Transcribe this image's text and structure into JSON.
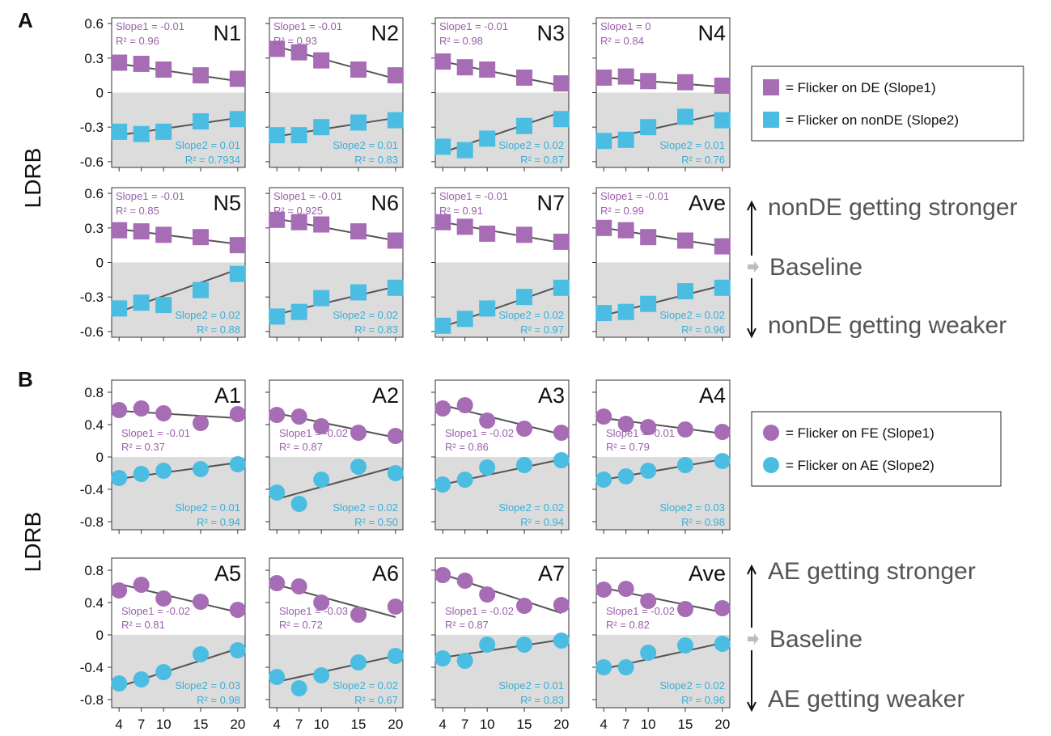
{
  "panel_labels": {
    "a": "A",
    "b": "B"
  },
  "y_axis_label": "LDRB",
  "colors": {
    "purple": "#a66cb4",
    "cyan": "#4bbde3",
    "fit_line": "#555555",
    "negative_bg": "#dcdcdc",
    "frame": "#333333",
    "tag_purple": "#9a5faa",
    "tag_cyan": "#3aaed6"
  },
  "legends": {
    "a": [
      "= Flicker on DE (Slope1)",
      "= Flicker on nonDE (Slope2)"
    ],
    "b": [
      "= Flicker on FE (Slope1)",
      "= Flicker on AE (Slope2)"
    ]
  },
  "annotations": {
    "a": {
      "stronger": "nonDE getting stronger",
      "baseline": "Baseline",
      "weaker": "nonDE getting weaker"
    },
    "b": {
      "stronger": "AE getting stronger",
      "baseline": "Baseline",
      "weaker": "AE getting weaker"
    }
  },
  "chart_data": [
    {
      "type": "scatter",
      "panel": "A",
      "title": "N1",
      "x": [
        4,
        7,
        10,
        15,
        20
      ],
      "xlim": [
        3,
        21
      ],
      "ylim": [
        -0.65,
        0.65
      ],
      "yticks": [
        "0.6",
        "0.3",
        "0",
        "-0.3",
        "-0.6"
      ],
      "series": [
        {
          "name": "Flicker on DE (Slope1)",
          "values": [
            0.26,
            0.25,
            0.2,
            0.15,
            0.12
          ],
          "fit": [
            0.25,
            0.1
          ],
          "slope_text": "Slope1 = -0.01",
          "r2_text": "R² = 0.96"
        },
        {
          "name": "Flicker on nonDE (Slope2)",
          "values": [
            -0.34,
            -0.36,
            -0.34,
            -0.25,
            -0.23
          ],
          "fit": [
            -0.37,
            -0.22
          ],
          "slope_text": "Slope2 = 0.01",
          "r2_text": "R² = 0.7934"
        }
      ]
    },
    {
      "type": "scatter",
      "panel": "A",
      "title": "N2",
      "x": [
        4,
        7,
        10,
        15,
        20
      ],
      "xlim": [
        3,
        21
      ],
      "ylim": [
        -0.65,
        0.65
      ],
      "yticks": [
        "0.6",
        "0.3",
        "0",
        "-0.3",
        "-0.6"
      ],
      "series": [
        {
          "name": "Flicker on DE (Slope1)",
          "values": [
            0.38,
            0.35,
            0.28,
            0.2,
            0.15
          ],
          "fit": [
            0.4,
            0.12
          ],
          "slope_text": "Slope1 = -0.01",
          "r2_text": "R² = 0.93"
        },
        {
          "name": "Flicker on nonDE (Slope2)",
          "values": [
            -0.37,
            -0.37,
            -0.3,
            -0.26,
            -0.24
          ],
          "fit": [
            -0.38,
            -0.22
          ],
          "slope_text": "Slope2 = 0.01",
          "r2_text": "R² = 0.83"
        }
      ]
    },
    {
      "type": "scatter",
      "panel": "A",
      "title": "N3",
      "x": [
        4,
        7,
        10,
        15,
        20
      ],
      "xlim": [
        3,
        21
      ],
      "ylim": [
        -0.65,
        0.65
      ],
      "yticks": [
        "0.6",
        "0.3",
        "0",
        "-0.3",
        "-0.6"
      ],
      "series": [
        {
          "name": "Flicker on DE (Slope1)",
          "values": [
            0.27,
            0.22,
            0.2,
            0.13,
            0.08
          ],
          "fit": [
            0.27,
            0.06
          ],
          "slope_text": "Slope1 = -0.01",
          "r2_text": "R² = 0.98"
        },
        {
          "name": "Flicker on nonDE (Slope2)",
          "values": [
            -0.47,
            -0.5,
            -0.4,
            -0.29,
            -0.23
          ],
          "fit": [
            -0.52,
            -0.17
          ],
          "slope_text": "Slope2 = 0.02",
          "r2_text": "R² = 0.87"
        }
      ]
    },
    {
      "type": "scatter",
      "panel": "A",
      "title": "N4",
      "x": [
        4,
        7,
        10,
        15,
        20
      ],
      "xlim": [
        3,
        21
      ],
      "ylim": [
        -0.65,
        0.65
      ],
      "yticks": [
        "0.6",
        "0.3",
        "0",
        "-0.3",
        "-0.6"
      ],
      "series": [
        {
          "name": "Flicker on DE (Slope1)",
          "values": [
            0.13,
            0.14,
            0.1,
            0.09,
            0.06
          ],
          "fit": [
            0.13,
            0.05
          ],
          "slope_text": "Slope1 = 0",
          "r2_text": "R² = 0.84"
        },
        {
          "name": "Flicker on nonDE (Slope2)",
          "values": [
            -0.42,
            -0.41,
            -0.3,
            -0.21,
            -0.24
          ],
          "fit": [
            -0.41,
            -0.18
          ],
          "slope_text": "Slope2 = 0.01",
          "r2_text": "R² = 0.76"
        }
      ]
    },
    {
      "type": "scatter",
      "panel": "A",
      "title": "N5",
      "x": [
        4,
        7,
        10,
        15,
        20
      ],
      "xlim": [
        3,
        21
      ],
      "ylim": [
        -0.65,
        0.65
      ],
      "yticks": [
        "0.6",
        "0.3",
        "0",
        "-0.3",
        "-0.6"
      ],
      "series": [
        {
          "name": "Flicker on DE (Slope1)",
          "values": [
            0.28,
            0.27,
            0.24,
            0.22,
            0.15
          ],
          "fit": [
            0.29,
            0.16
          ],
          "slope_text": "Slope1 = -0.01",
          "r2_text": "R² = 0.85"
        },
        {
          "name": "Flicker on nonDE (Slope2)",
          "values": [
            -0.4,
            -0.35,
            -0.37,
            -0.24,
            -0.1
          ],
          "fit": [
            -0.43,
            -0.06
          ],
          "slope_text": "Slope2 = 0.02",
          "r2_text": "R² = 0.88"
        }
      ]
    },
    {
      "type": "scatter",
      "panel": "A",
      "title": "N6",
      "x": [
        4,
        7,
        10,
        15,
        20
      ],
      "xlim": [
        3,
        21
      ],
      "ylim": [
        -0.65,
        0.65
      ],
      "yticks": [
        "0.6",
        "0.3",
        "0",
        "-0.3",
        "-0.6"
      ],
      "series": [
        {
          "name": "Flicker on DE (Slope1)",
          "values": [
            0.37,
            0.35,
            0.33,
            0.27,
            0.19
          ],
          "fit": [
            0.38,
            0.19
          ],
          "slope_text": "Slope1 = -0.01",
          "r2_text": "R² = 0.925"
        },
        {
          "name": "Flicker on nonDE (Slope2)",
          "values": [
            -0.47,
            -0.43,
            -0.31,
            -0.26,
            -0.22
          ],
          "fit": [
            -0.45,
            -0.21
          ],
          "slope_text": "Slope2 = 0.02",
          "r2_text": "R² = 0.83"
        }
      ]
    },
    {
      "type": "scatter",
      "panel": "A",
      "title": "N7",
      "x": [
        4,
        7,
        10,
        15,
        20
      ],
      "xlim": [
        3,
        21
      ],
      "ylim": [
        -0.65,
        0.65
      ],
      "yticks": [
        "0.6",
        "0.3",
        "0",
        "-0.3",
        "-0.6"
      ],
      "series": [
        {
          "name": "Flicker on DE (Slope1)",
          "values": [
            0.35,
            0.31,
            0.25,
            0.24,
            0.18
          ],
          "fit": [
            0.35,
            0.17
          ],
          "slope_text": "Slope1 = -0.01",
          "r2_text": "R² = 0.91"
        },
        {
          "name": "Flicker on nonDE (Slope2)",
          "values": [
            -0.55,
            -0.49,
            -0.4,
            -0.3,
            -0.22
          ],
          "fit": [
            -0.56,
            -0.2
          ],
          "slope_text": "Slope2 = 0.02",
          "r2_text": "R² = 0.97"
        }
      ]
    },
    {
      "type": "scatter",
      "panel": "A",
      "title": "Ave",
      "x": [
        4,
        7,
        10,
        15,
        20
      ],
      "xlim": [
        3,
        21
      ],
      "ylim": [
        -0.65,
        0.65
      ],
      "yticks": [
        "0.6",
        "0.3",
        "0",
        "-0.3",
        "-0.6"
      ],
      "series": [
        {
          "name": "Flicker on DE (Slope1)",
          "values": [
            0.3,
            0.28,
            0.22,
            0.19,
            0.14
          ],
          "fit": [
            0.3,
            0.14
          ],
          "slope_text": "Slope1 = -0.01",
          "r2_text": "R² = 0.99"
        },
        {
          "name": "Flicker on nonDE (Slope2)",
          "values": [
            -0.44,
            -0.43,
            -0.36,
            -0.25,
            -0.22
          ],
          "fit": [
            -0.46,
            -0.2
          ],
          "slope_text": "Slope2 = 0.02",
          "r2_text": "R² = 0.96"
        }
      ]
    },
    {
      "type": "scatter",
      "panel": "B",
      "title": "A1",
      "x": [
        4,
        7,
        10,
        15,
        20
      ],
      "xlim": [
        3,
        21
      ],
      "ylim": [
        -0.9,
        0.95
      ],
      "yticks": [
        "0.8",
        "0.4",
        "0",
        "-0.4",
        "-0.8"
      ],
      "series": [
        {
          "name": "Flicker on FE (Slope1)",
          "values": [
            0.58,
            0.6,
            0.54,
            0.42,
            0.53
          ],
          "fit": [
            0.57,
            0.48
          ],
          "slope_text": "Slope1 = -0.01",
          "r2_text": "R² = 0.37"
        },
        {
          "name": "Flicker on AE (Slope2)",
          "values": [
            -0.26,
            -0.21,
            -0.17,
            -0.15,
            -0.09
          ],
          "fit": [
            -0.27,
            -0.07
          ],
          "slope_text": "Slope2 = 0.01",
          "r2_text": "R² = 0.94"
        }
      ]
    },
    {
      "type": "scatter",
      "panel": "B",
      "title": "A2",
      "x": [
        4,
        7,
        10,
        15,
        20
      ],
      "xlim": [
        3,
        21
      ],
      "ylim": [
        -0.9,
        0.95
      ],
      "yticks": [
        "0.8",
        "0.4",
        "0",
        "-0.4",
        "-0.8"
      ],
      "series": [
        {
          "name": "Flicker on FE (Slope1)",
          "values": [
            0.52,
            0.5,
            0.38,
            0.3,
            0.26
          ],
          "fit": [
            0.54,
            0.24
          ],
          "slope_text": "Slope1 = -0.02",
          "r2_text": "R² = 0.87"
        },
        {
          "name": "Flicker on AE (Slope2)",
          "values": [
            -0.44,
            -0.58,
            -0.28,
            -0.12,
            -0.2
          ],
          "fit": [
            -0.52,
            -0.12
          ],
          "slope_text": "Slope2 = 0.02",
          "r2_text": "R² = 0.50"
        }
      ]
    },
    {
      "type": "scatter",
      "panel": "B",
      "title": "A3",
      "x": [
        4,
        7,
        10,
        15,
        20
      ],
      "xlim": [
        3,
        21
      ],
      "ylim": [
        -0.9,
        0.95
      ],
      "yticks": [
        "0.8",
        "0.4",
        "0",
        "-0.4",
        "-0.8"
      ],
      "series": [
        {
          "name": "Flicker on FE (Slope1)",
          "values": [
            0.6,
            0.64,
            0.45,
            0.35,
            0.3
          ],
          "fit": [
            0.64,
            0.28
          ],
          "slope_text": "Slope1 = -0.02",
          "r2_text": "R² = 0.86"
        },
        {
          "name": "Flicker on AE (Slope2)",
          "values": [
            -0.34,
            -0.28,
            -0.13,
            -0.1,
            -0.04
          ],
          "fit": [
            -0.34,
            -0.03
          ],
          "slope_text": "Slope2 = 0.02",
          "r2_text": "R² = 0.94"
        }
      ]
    },
    {
      "type": "scatter",
      "panel": "B",
      "title": "A4",
      "x": [
        4,
        7,
        10,
        15,
        20
      ],
      "xlim": [
        3,
        21
      ],
      "ylim": [
        -0.9,
        0.95
      ],
      "yticks": [
        "0.8",
        "0.4",
        "0",
        "-0.4",
        "-0.8"
      ],
      "series": [
        {
          "name": "Flicker on FE (Slope1)",
          "values": [
            0.5,
            0.41,
            0.37,
            0.34,
            0.31
          ],
          "fit": [
            0.48,
            0.29
          ],
          "slope_text": "Slope1 = -0.01",
          "r2_text": "R² = 0.79"
        },
        {
          "name": "Flicker on AE (Slope2)",
          "values": [
            -0.28,
            -0.24,
            -0.17,
            -0.1,
            -0.05
          ],
          "fit": [
            -0.28,
            -0.03
          ],
          "slope_text": "Slope2 = 0.03",
          "r2_text": "R² = 0.98"
        }
      ]
    },
    {
      "type": "scatter",
      "panel": "B",
      "title": "A5",
      "x": [
        4,
        7,
        10,
        15,
        20
      ],
      "xlim": [
        3,
        21
      ],
      "ylim": [
        -0.9,
        0.95
      ],
      "yticks": [
        "0.8",
        "0.4",
        "0",
        "-0.4",
        "-0.8"
      ],
      "series": [
        {
          "name": "Flicker on FE (Slope1)",
          "values": [
            0.55,
            0.62,
            0.45,
            0.41,
            0.31
          ],
          "fit": [
            0.63,
            0.28
          ],
          "slope_text": "Slope1 = -0.02",
          "r2_text": "R² = 0.81"
        },
        {
          "name": "Flicker on AE (Slope2)",
          "values": [
            -0.6,
            -0.55,
            -0.46,
            -0.24,
            -0.19
          ],
          "fit": [
            -0.64,
            -0.17
          ],
          "slope_text": "Slope2 = 0.03",
          "r2_text": "R² = 0.98"
        }
      ]
    },
    {
      "type": "scatter",
      "panel": "B",
      "title": "A6",
      "x": [
        4,
        7,
        10,
        15,
        20
      ],
      "xlim": [
        3,
        21
      ],
      "ylim": [
        -0.9,
        0.95
      ],
      "yticks": [
        "0.8",
        "0.4",
        "0",
        "-0.4",
        "-0.8"
      ],
      "series": [
        {
          "name": "Flicker on FE (Slope1)",
          "values": [
            0.64,
            0.6,
            0.4,
            0.25,
            0.35
          ],
          "fit": [
            0.62,
            0.22
          ],
          "slope_text": "Slope1 = -0.03",
          "r2_text": "R² = 0.72"
        },
        {
          "name": "Flicker on AE (Slope2)",
          "values": [
            -0.52,
            -0.66,
            -0.5,
            -0.34,
            -0.26
          ],
          "fit": [
            -0.58,
            -0.26
          ],
          "slope_text": "Slope2 = 0.02",
          "r2_text": "R² = 0.67"
        }
      ]
    },
    {
      "type": "scatter",
      "panel": "B",
      "title": "A7",
      "x": [
        4,
        7,
        10,
        15,
        20
      ],
      "xlim": [
        3,
        21
      ],
      "ylim": [
        -0.9,
        0.95
      ],
      "yticks": [
        "0.8",
        "0.4",
        "0",
        "-0.4",
        "-0.8"
      ],
      "series": [
        {
          "name": "Flicker on FE (Slope1)",
          "values": [
            0.74,
            0.67,
            0.5,
            0.36,
            0.37
          ],
          "fit": [
            0.75,
            0.27
          ],
          "slope_text": "Slope1 = -0.02",
          "r2_text": "R² = 0.87"
        },
        {
          "name": "Flicker on AE (Slope2)",
          "values": [
            -0.29,
            -0.32,
            -0.12,
            -0.12,
            -0.07
          ],
          "fit": [
            -0.28,
            -0.06
          ],
          "slope_text": "Slope2 = 0.01",
          "r2_text": "R² = 0.83"
        }
      ]
    },
    {
      "type": "scatter",
      "panel": "B",
      "title": "Ave",
      "x": [
        4,
        7,
        10,
        15,
        20
      ],
      "xlim": [
        3,
        21
      ],
      "ylim": [
        -0.9,
        0.95
      ],
      "yticks": [
        "0.8",
        "0.4",
        "0",
        "-0.4",
        "-0.8"
      ],
      "series": [
        {
          "name": "Flicker on FE (Slope1)",
          "values": [
            0.56,
            0.57,
            0.42,
            0.32,
            0.33
          ],
          "fit": [
            0.58,
            0.28
          ],
          "slope_text": "Slope1 = -0.02",
          "r2_text": "R² = 0.82"
        },
        {
          "name": "Flicker on AE (Slope2)",
          "values": [
            -0.4,
            -0.4,
            -0.22,
            -0.13,
            -0.11
          ],
          "fit": [
            -0.42,
            -0.1
          ],
          "slope_text": "Slope2 = 0.02",
          "r2_text": "R² = 0.96"
        }
      ]
    }
  ],
  "x_tick_labels": [
    "4",
    "7",
    "10",
    "15",
    "20"
  ]
}
